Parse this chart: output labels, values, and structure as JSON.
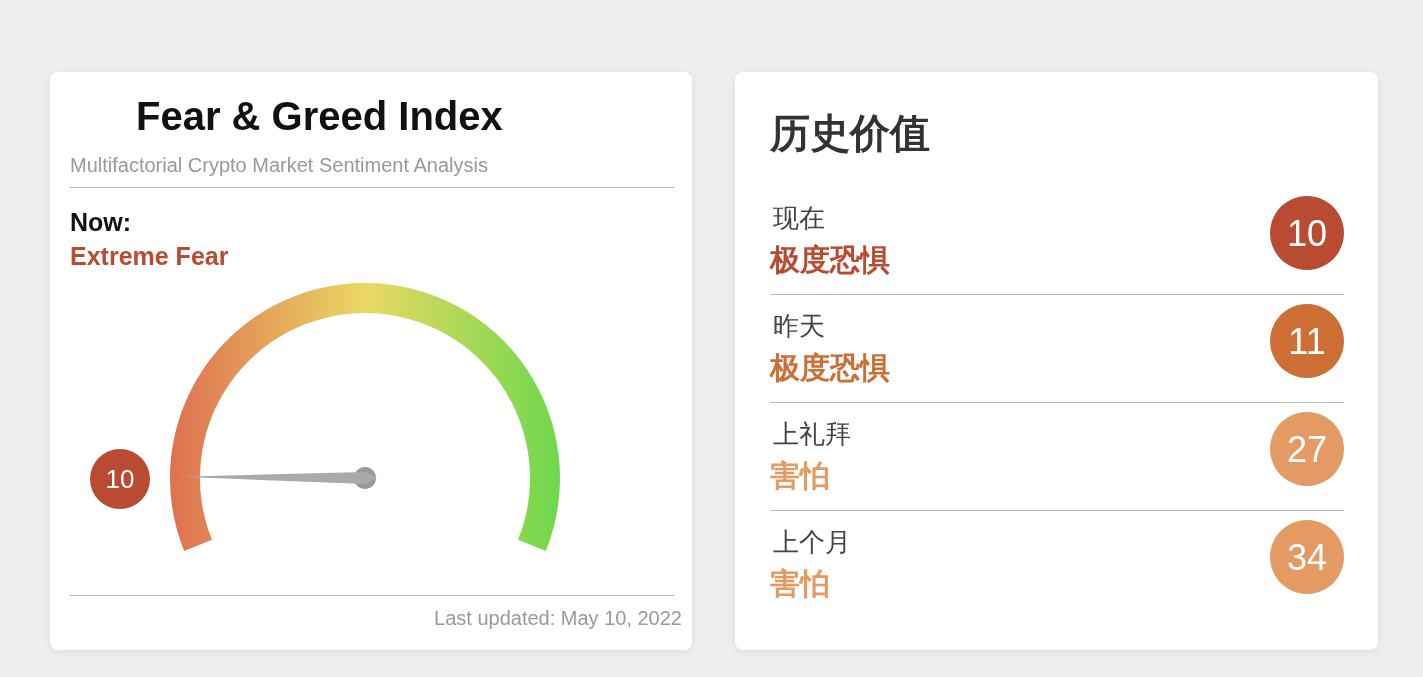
{
  "chart_data": [
    {
      "type": "other",
      "title": "Fear & Greed Index",
      "subtitle": "Multifactorial Crypto Market Sentiment Analysis",
      "annotations": [
        "Now:",
        "Extreme Fear",
        "Last updated: May 10, 2022"
      ],
      "values": [
        10
      ],
      "color": "#b84b32",
      "data_labels": true
    },
    {
      "type": "other",
      "title": "历史价值",
      "categories": [
        "现在",
        "昨天",
        "上礼拜",
        "上个月"
      ],
      "values": [
        10,
        11,
        27,
        34
      ],
      "annotations": [
        "极度恐惧",
        "极度恐惧",
        "害怕",
        "害怕"
      ],
      "data_labels": true
    }
  ]
}
